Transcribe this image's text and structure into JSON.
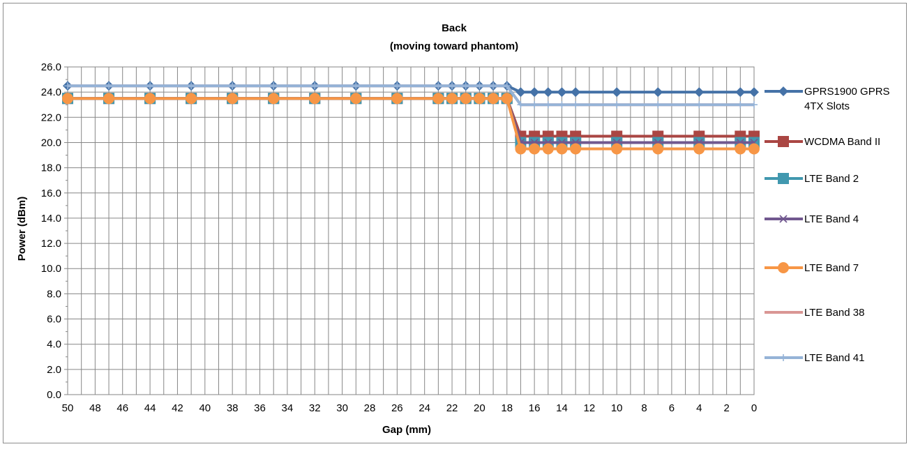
{
  "chart_data": {
    "type": "line",
    "title": "Back",
    "subtitle": "(moving toward phantom)",
    "xlabel": "Gap (mm)",
    "ylabel": "Power (dBm)",
    "x_reversed": true,
    "xlim": [
      50,
      0
    ],
    "ylim": [
      0,
      26
    ],
    "y_ticks": [
      "0.0",
      "2.0",
      "4.0",
      "6.0",
      "8.0",
      "10.0",
      "12.0",
      "14.0",
      "16.0",
      "18.0",
      "20.0",
      "22.0",
      "24.0",
      "26.0"
    ],
    "x_ticks": [
      "50",
      "48",
      "46",
      "44",
      "42",
      "40",
      "38",
      "36",
      "34",
      "32",
      "30",
      "28",
      "26",
      "24",
      "22",
      "20",
      "18",
      "16",
      "14",
      "12",
      "10",
      "8",
      "6",
      "4",
      "2",
      "0"
    ],
    "grid": true,
    "legend_position": "right",
    "x": [
      50,
      47,
      44,
      41,
      38,
      35,
      32,
      29,
      26,
      23,
      22,
      21,
      20,
      19,
      18,
      17,
      16,
      15,
      14,
      13,
      10,
      7,
      4,
      1,
      0
    ],
    "series": [
      {
        "name": "GPRS1900 GPRS 4TX Slots",
        "color": "#4572a7",
        "marker": "diamond",
        "values": [
          24.5,
          24.5,
          24.5,
          24.5,
          24.5,
          24.5,
          24.5,
          24.5,
          24.5,
          24.5,
          24.5,
          24.5,
          24.5,
          24.5,
          24.5,
          24.0,
          24.0,
          24.0,
          24.0,
          24.0,
          24.0,
          24.0,
          24.0,
          24.0,
          24.0
        ]
      },
      {
        "name": "WCDMA Band II",
        "color": "#aa4643",
        "marker": "square",
        "values": [
          23.5,
          23.5,
          23.5,
          23.5,
          23.5,
          23.5,
          23.5,
          23.5,
          23.5,
          23.5,
          23.5,
          23.5,
          23.5,
          23.5,
          23.5,
          20.5,
          20.5,
          20.5,
          20.5,
          20.5,
          20.5,
          20.5,
          20.5,
          20.5,
          20.5
        ]
      },
      {
        "name": "LTE Band 2",
        "color": "#4198af",
        "marker": "square",
        "values": [
          23.5,
          23.5,
          23.5,
          23.5,
          23.5,
          23.5,
          23.5,
          23.5,
          23.5,
          23.5,
          23.5,
          23.5,
          23.5,
          23.5,
          23.5,
          20.0,
          20.0,
          20.0,
          20.0,
          20.0,
          20.0,
          20.0,
          20.0,
          20.0,
          20.0
        ]
      },
      {
        "name": "LTE Band 4",
        "color": "#71588f",
        "marker": "x",
        "values": [
          23.5,
          23.5,
          23.5,
          23.5,
          23.5,
          23.5,
          23.5,
          23.5,
          23.5,
          23.5,
          23.5,
          23.5,
          23.5,
          23.5,
          23.5,
          20.0,
          20.0,
          20.0,
          20.0,
          20.0,
          20.0,
          20.0,
          20.0,
          20.0,
          20.0
        ]
      },
      {
        "name": "LTE Band 7",
        "color": "#f79646",
        "marker": "circle",
        "values": [
          23.5,
          23.5,
          23.5,
          23.5,
          23.5,
          23.5,
          23.5,
          23.5,
          23.5,
          23.5,
          23.5,
          23.5,
          23.5,
          23.5,
          23.5,
          19.5,
          19.5,
          19.5,
          19.5,
          19.5,
          19.5,
          19.5,
          19.5,
          19.5,
          19.5
        ]
      },
      {
        "name": "LTE Band 38",
        "color": "#d99694",
        "marker": "none",
        "values": [
          24.5,
          24.5,
          24.5,
          24.5,
          24.5,
          24.5,
          24.5,
          24.5,
          24.5,
          24.5,
          24.5,
          24.5,
          24.5,
          24.5,
          24.5,
          23.0,
          23.0,
          23.0,
          23.0,
          23.0,
          23.0,
          23.0,
          23.0,
          23.0,
          23.0
        ]
      },
      {
        "name": "LTE Band 41",
        "color": "#95b3d7",
        "marker": "plus",
        "values": [
          24.5,
          24.5,
          24.5,
          24.5,
          24.5,
          24.5,
          24.5,
          24.5,
          24.5,
          24.5,
          24.5,
          24.5,
          24.5,
          24.5,
          24.5,
          23.0,
          23.0,
          23.0,
          23.0,
          23.0,
          23.0,
          23.0,
          23.0,
          23.0,
          23.0
        ]
      }
    ],
    "legend_labels": [
      [
        "GPRS1900 GPRS",
        "4TX Slots"
      ],
      [
        "WCDMA Band II"
      ],
      [
        "LTE Band 2"
      ],
      [
        "LTE Band 4"
      ],
      [
        "LTE Band 7"
      ],
      [
        "LTE Band 38"
      ],
      [
        "LTE Band 41"
      ]
    ]
  }
}
